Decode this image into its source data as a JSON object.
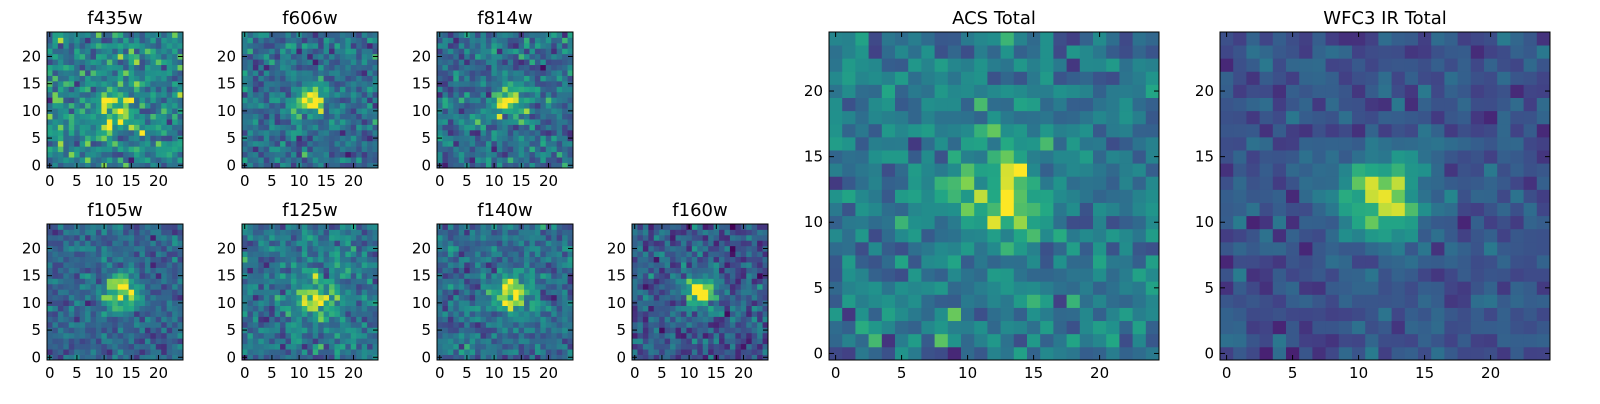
{
  "chart_data": [
    {
      "type": "heatmap",
      "title": "f435w",
      "xlim": [
        0,
        25
      ],
      "ylim": [
        0,
        25
      ],
      "xticks": [
        0,
        5,
        10,
        15,
        20
      ],
      "yticks": [
        0,
        5,
        10,
        15,
        20
      ],
      "colormap": "viridis",
      "source_center": [
        12,
        11
      ],
      "source_width": 3.0,
      "source_strength": 0.3,
      "noise": 0.6,
      "base": 0.55,
      "seed": 11
    },
    {
      "type": "heatmap",
      "title": "f606w",
      "xlim": [
        0,
        25
      ],
      "ylim": [
        0,
        25
      ],
      "xticks": [
        0,
        5,
        10,
        15,
        20
      ],
      "yticks": [
        0,
        5,
        10,
        15,
        20
      ],
      "colormap": "viridis",
      "source_center": [
        12,
        12
      ],
      "source_width": 2.0,
      "source_strength": 0.55,
      "noise": 0.5,
      "base": 0.45,
      "seed": 23
    },
    {
      "type": "heatmap",
      "title": "f814w",
      "xlim": [
        0,
        25
      ],
      "ylim": [
        0,
        25
      ],
      "xticks": [
        0,
        5,
        10,
        15,
        20
      ],
      "yticks": [
        0,
        5,
        10,
        15,
        20
      ],
      "colormap": "viridis",
      "source_center": [
        13,
        12
      ],
      "source_width": 2.3,
      "source_strength": 0.45,
      "noise": 0.55,
      "base": 0.45,
      "seed": 37
    },
    {
      "type": "heatmap",
      "title": "f105w",
      "xlim": [
        0,
        25
      ],
      "ylim": [
        0,
        25
      ],
      "xticks": [
        0,
        5,
        10,
        15,
        20
      ],
      "yticks": [
        0,
        5,
        10,
        15,
        20
      ],
      "colormap": "viridis",
      "source_center": [
        13,
        12
      ],
      "source_width": 2.2,
      "source_strength": 0.65,
      "noise": 0.4,
      "base": 0.4,
      "seed": 41
    },
    {
      "type": "heatmap",
      "title": "f125w",
      "xlim": [
        0,
        25
      ],
      "ylim": [
        0,
        25
      ],
      "xticks": [
        0,
        5,
        10,
        15,
        20
      ],
      "yticks": [
        0,
        5,
        10,
        15,
        20
      ],
      "colormap": "viridis",
      "source_center": [
        13,
        11
      ],
      "source_width": 2.5,
      "source_strength": 0.5,
      "noise": 0.5,
      "base": 0.48,
      "seed": 53
    },
    {
      "type": "heatmap",
      "title": "f140w",
      "xlim": [
        0,
        25
      ],
      "ylim": [
        0,
        25
      ],
      "xticks": [
        0,
        5,
        10,
        15,
        20
      ],
      "yticks": [
        0,
        5,
        10,
        15,
        20
      ],
      "colormap": "viridis",
      "source_center": [
        13,
        12
      ],
      "source_width": 2.3,
      "source_strength": 0.6,
      "noise": 0.45,
      "base": 0.45,
      "seed": 67
    },
    {
      "type": "heatmap",
      "title": "f160w",
      "xlim": [
        0,
        25
      ],
      "ylim": [
        0,
        25
      ],
      "xticks": [
        0,
        5,
        10,
        15,
        20
      ],
      "yticks": [
        0,
        5,
        10,
        15,
        20
      ],
      "colormap": "viridis",
      "source_center": [
        12,
        12
      ],
      "source_width": 2.0,
      "source_strength": 0.7,
      "noise": 0.5,
      "base": 0.35,
      "seed": 79
    },
    {
      "type": "heatmap",
      "title": "ACS Total",
      "xlim": [
        0,
        25
      ],
      "ylim": [
        0,
        25
      ],
      "xticks": [
        0,
        5,
        10,
        15,
        20
      ],
      "yticks": [
        0,
        5,
        10,
        15,
        20
      ],
      "colormap": "viridis",
      "source_center": [
        12.5,
        12
      ],
      "source_width": 2.4,
      "source_strength": 0.45,
      "noise": 0.45,
      "base": 0.5,
      "seed": 97
    },
    {
      "type": "heatmap",
      "title": "WFC3 IR Total",
      "xlim": [
        0,
        25
      ],
      "ylim": [
        0,
        25
      ],
      "xticks": [
        0,
        5,
        10,
        15,
        20
      ],
      "yticks": [
        0,
        5,
        10,
        15,
        20
      ],
      "colormap": "viridis",
      "source_center": [
        12,
        12
      ],
      "source_width": 2.3,
      "source_strength": 0.7,
      "noise": 0.3,
      "base": 0.32,
      "seed": 113
    }
  ]
}
